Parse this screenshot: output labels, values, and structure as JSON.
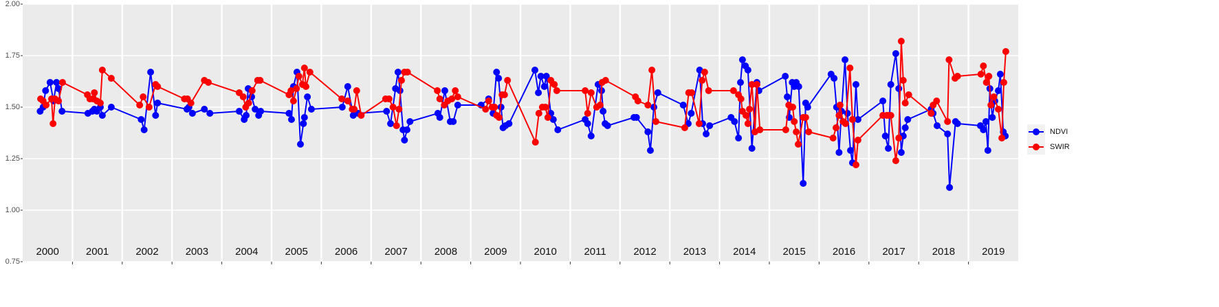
{
  "chart_data": {
    "type": "line",
    "xlim": [
      2000,
      2020
    ],
    "xticks": [
      {
        "value": 2000.5,
        "label": "2000"
      },
      {
        "value": 2001.5,
        "label": "2001"
      },
      {
        "value": 2002.5,
        "label": "2002"
      },
      {
        "value": 2003.5,
        "label": "2003"
      },
      {
        "value": 2004.5,
        "label": "2004"
      },
      {
        "value": 2005.5,
        "label": "2005"
      },
      {
        "value": 2006.5,
        "label": "2006"
      },
      {
        "value": 2007.5,
        "label": "2007"
      },
      {
        "value": 2008.5,
        "label": "2008"
      },
      {
        "value": 2009.5,
        "label": "2009"
      },
      {
        "value": 2010.5,
        "label": "2010"
      },
      {
        "value": 2011.5,
        "label": "2011"
      },
      {
        "value": 2012.5,
        "label": "2012"
      },
      {
        "value": 2013.5,
        "label": "2013"
      },
      {
        "value": 2014.5,
        "label": "2014"
      },
      {
        "value": 2015.5,
        "label": "2015"
      },
      {
        "value": 2016.5,
        "label": "2016"
      },
      {
        "value": 2017.5,
        "label": "2017"
      },
      {
        "value": 2018.5,
        "label": "2018"
      },
      {
        "value": 2019.5,
        "label": "2019"
      }
    ],
    "ylim": [
      0.75,
      2
    ],
    "yticks": [
      0.75,
      {
        "value": 1,
        "label": "1.00"
      },
      1.25,
      {
        "value": 1.5,
        "label": "1.50"
      },
      1.75,
      {
        "value": 2,
        "label": "2.00"
      }
    ],
    "grid": true,
    "legend": "right",
    "series": [
      {
        "name": "NDVI",
        "color": "#0000ff",
        "x": [
          2000.35,
          2000.41,
          2000.46,
          2000.55,
          2000.62,
          2000.68,
          2000.72,
          2000.79,
          2001.31,
          2001.4,
          2001.44,
          2001.49,
          2001.56,
          2001.6,
          2001.78,
          2002.38,
          2002.44,
          2002.57,
          2002.67,
          2002.71,
          2003.3,
          2003.34,
          2003.41,
          2003.65,
          2003.76,
          2004.35,
          2004.45,
          2004.49,
          2004.53,
          2004.6,
          2004.67,
          2004.74,
          2004.78,
          2005.35,
          2005.4,
          2005.44,
          2005.51,
          2005.58,
          2005.64,
          2005.66,
          2005.72,
          2005.8,
          2006.42,
          2006.53,
          2006.64,
          2006.74,
          2007.31,
          2007.39,
          2007.49,
          2007.54,
          2007.58,
          2007.64,
          2007.67,
          2007.72,
          2007.78,
          2008.34,
          2008.38,
          2008.48,
          2008.59,
          2008.65,
          2008.74,
          2009.21,
          2009.36,
          2009.45,
          2009.52,
          2009.56,
          2009.61,
          2009.65,
          2009.7,
          2009.77,
          2010.29,
          2010.36,
          2010.41,
          2010.48,
          2010.52,
          2010.61,
          2010.66,
          2010.75,
          2011.3,
          2011.35,
          2011.42,
          2011.56,
          2011.63,
          2011.66,
          2011.7,
          2011.75,
          2012.28,
          2012.33,
          2012.56,
          2012.61,
          2012.68,
          2012.76,
          2013.27,
          2013.37,
          2013.43,
          2013.6,
          2013.66,
          2013.73,
          2013.8,
          2014.23,
          2014.3,
          2014.38,
          2014.42,
          2014.46,
          2014.52,
          2014.57,
          2014.65,
          2014.75,
          2014.79,
          2015.32,
          2015.36,
          2015.4,
          2015.46,
          2015.5,
          2015.54,
          2015.59,
          2015.68,
          2015.73,
          2015.77,
          2016.24,
          2016.3,
          2016.35,
          2016.4,
          2016.45,
          2016.52,
          2016.57,
          2016.63,
          2016.67,
          2016.74,
          2016.78,
          2017.28,
          2017.33,
          2017.39,
          2017.44,
          2017.54,
          2017.6,
          2017.65,
          2017.69,
          2017.73,
          2017.78,
          2018.25,
          2018.29,
          2018.37,
          2018.58,
          2018.62,
          2018.74,
          2018.78,
          2019.24,
          2019.3,
          2019.35,
          2019.39,
          2019.43,
          2019.48,
          2019.53,
          2019.6,
          2019.64,
          2019.7,
          2019.74
        ],
        "values": [
          1.48,
          1.5,
          1.58,
          1.62,
          1.53,
          1.62,
          1.59,
          1.48,
          1.47,
          1.48,
          1.49,
          1.48,
          1.5,
          1.46,
          1.5,
          1.44,
          1.39,
          1.67,
          1.46,
          1.52,
          1.49,
          1.5,
          1.47,
          1.49,
          1.47,
          1.48,
          1.44,
          1.46,
          1.59,
          1.55,
          1.49,
          1.46,
          1.48,
          1.47,
          1.44,
          1.6,
          1.67,
          1.32,
          1.42,
          1.45,
          1.55,
          1.49,
          1.5,
          1.6,
          1.46,
          1.47,
          1.48,
          1.42,
          1.59,
          1.67,
          1.58,
          1.39,
          1.34,
          1.39,
          1.43,
          1.47,
          1.45,
          1.58,
          1.43,
          1.43,
          1.51,
          1.51,
          1.54,
          1.47,
          1.67,
          1.64,
          1.5,
          1.4,
          1.41,
          1.42,
          1.68,
          1.57,
          1.65,
          1.6,
          1.65,
          1.47,
          1.44,
          1.39,
          1.44,
          1.42,
          1.36,
          1.61,
          1.58,
          1.48,
          1.42,
          1.41,
          1.45,
          1.45,
          1.38,
          1.29,
          1.5,
          1.57,
          1.51,
          1.42,
          1.47,
          1.68,
          1.42,
          1.37,
          1.41,
          1.45,
          1.43,
          1.35,
          1.62,
          1.73,
          1.7,
          1.68,
          1.3,
          1.62,
          1.58,
          1.65,
          1.55,
          1.45,
          1.62,
          1.6,
          1.62,
          1.6,
          1.13,
          1.52,
          1.5,
          1.66,
          1.64,
          1.5,
          1.28,
          1.48,
          1.73,
          1.47,
          1.29,
          1.23,
          1.61,
          1.44,
          1.53,
          1.36,
          1.3,
          1.61,
          1.76,
          1.59,
          1.28,
          1.36,
          1.4,
          1.44,
          1.49,
          1.47,
          1.41,
          1.37,
          1.11,
          1.43,
          1.42,
          1.41,
          1.39,
          1.43,
          1.29,
          1.59,
          1.45,
          1.53,
          1.58,
          1.66,
          1.38,
          1.36
        ]
      },
      {
        "name": "SWIR",
        "color": "#ff0000",
        "x": [
          2000.36,
          2000.41,
          2000.47,
          2000.58,
          2000.61,
          2000.65,
          2000.72,
          2000.8,
          2001.3,
          2001.35,
          2001.41,
          2001.44,
          2001.49,
          2001.56,
          2001.6,
          2001.78,
          2002.35,
          2002.42,
          2002.54,
          2002.67,
          2002.71,
          2003.25,
          2003.31,
          2003.38,
          2003.65,
          2003.73,
          2004.35,
          2004.43,
          2004.48,
          2004.54,
          2004.61,
          2004.72,
          2004.77,
          2005.35,
          2005.39,
          2005.44,
          2005.5,
          2005.55,
          2005.62,
          2005.66,
          2005.69,
          2005.77,
          2006.41,
          2006.53,
          2006.62,
          2006.66,
          2006.71,
          2006.8,
          2007.29,
          2007.36,
          2007.44,
          2007.51,
          2007.56,
          2007.61,
          2007.67,
          2007.73,
          2008.33,
          2008.38,
          2008.47,
          2008.54,
          2008.62,
          2008.69,
          2008.74,
          2009.3,
          2009.36,
          2009.43,
          2009.48,
          2009.52,
          2009.57,
          2009.63,
          2009.68,
          2009.74,
          2010.3,
          2010.37,
          2010.44,
          2010.5,
          2010.55,
          2010.61,
          2010.68,
          2010.73,
          2011.3,
          2011.35,
          2011.42,
          2011.53,
          2011.6,
          2011.64,
          2011.71,
          2012.31,
          2012.36,
          2012.56,
          2012.64,
          2012.72,
          2013.3,
          2013.38,
          2013.44,
          2013.59,
          2013.65,
          2013.7,
          2013.78,
          2014.28,
          2014.38,
          2014.43,
          2014.46,
          2014.53,
          2014.57,
          2014.6,
          2014.65,
          2014.71,
          2014.75,
          2014.81,
          2015.33,
          2015.39,
          2015.43,
          2015.47,
          2015.5,
          2015.54,
          2015.58,
          2015.68,
          2015.73,
          2015.79,
          2016.28,
          2016.34,
          2016.4,
          2016.42,
          2016.48,
          2016.53,
          2016.62,
          2016.67,
          2016.74,
          2016.78,
          2017.28,
          2017.36,
          2017.4,
          2017.44,
          2017.54,
          2017.6,
          2017.65,
          2017.69,
          2017.73,
          2017.8,
          2018.25,
          2018.29,
          2018.36,
          2018.58,
          2018.61,
          2018.73,
          2018.78,
          2019.25,
          2019.3,
          2019.36,
          2019.41,
          2019.45,
          2019.51,
          2019.6,
          2019.67,
          2019.71,
          2019.75
        ],
        "values": [
          1.54,
          1.53,
          1.51,
          1.54,
          1.42,
          1.54,
          1.53,
          1.62,
          1.56,
          1.54,
          1.54,
          1.57,
          1.53,
          1.52,
          1.68,
          1.64,
          1.51,
          1.55,
          1.5,
          1.61,
          1.6,
          1.54,
          1.54,
          1.52,
          1.63,
          1.62,
          1.57,
          1.55,
          1.5,
          1.52,
          1.58,
          1.63,
          1.63,
          1.56,
          1.58,
          1.53,
          1.59,
          1.65,
          1.61,
          1.69,
          1.6,
          1.67,
          1.54,
          1.53,
          1.49,
          1.49,
          1.58,
          1.46,
          1.54,
          1.54,
          1.5,
          1.41,
          1.49,
          1.63,
          1.67,
          1.67,
          1.58,
          1.54,
          1.51,
          1.53,
          1.54,
          1.58,
          1.55,
          1.49,
          1.53,
          1.5,
          1.5,
          1.46,
          1.45,
          1.56,
          1.56,
          1.63,
          1.33,
          1.47,
          1.5,
          1.5,
          1.45,
          1.63,
          1.61,
          1.58,
          1.58,
          1.47,
          1.57,
          1.5,
          1.51,
          1.62,
          1.63,
          1.55,
          1.53,
          1.51,
          1.68,
          1.43,
          1.4,
          1.57,
          1.57,
          1.42,
          1.63,
          1.67,
          1.58,
          1.58,
          1.56,
          1.54,
          1.48,
          1.46,
          1.42,
          1.49,
          1.61,
          1.38,
          1.61,
          1.39,
          1.39,
          1.51,
          1.5,
          1.5,
          1.43,
          1.38,
          1.32,
          1.45,
          1.45,
          1.38,
          1.35,
          1.4,
          1.46,
          1.51,
          1.43,
          1.42,
          1.69,
          1.44,
          1.22,
          1.34,
          1.46,
          1.46,
          1.46,
          1.46,
          1.24,
          1.35,
          1.82,
          1.63,
          1.52,
          1.56,
          1.47,
          1.51,
          1.53,
          1.43,
          1.73,
          1.64,
          1.65,
          1.66,
          1.7,
          1.62,
          1.65,
          1.51,
          1.55,
          1.49,
          1.35,
          1.62,
          1.77
        ]
      }
    ]
  }
}
